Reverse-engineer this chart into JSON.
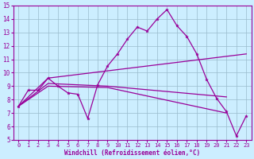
{
  "xlabel": "Windchill (Refroidissement éolien,°C)",
  "xlim": [
    -0.5,
    23.5
  ],
  "ylim": [
    5,
    15
  ],
  "yticks": [
    5,
    6,
    7,
    8,
    9,
    10,
    11,
    12,
    13,
    14,
    15
  ],
  "xticks": [
    0,
    1,
    2,
    3,
    4,
    5,
    6,
    7,
    8,
    9,
    10,
    11,
    12,
    13,
    14,
    15,
    16,
    17,
    18,
    19,
    20,
    21,
    22,
    23
  ],
  "color": "#990099",
  "bg_color": "#cceeff",
  "grid_color": "#99bbcc",
  "line1_x": [
    0,
    1,
    2,
    3,
    4,
    5,
    6,
    7,
    8,
    9,
    10,
    11,
    12,
    13,
    14,
    15,
    16,
    17,
    18,
    19,
    20,
    21,
    22,
    23
  ],
  "line1_y": [
    7.5,
    8.7,
    8.7,
    9.6,
    9.0,
    8.5,
    8.4,
    6.6,
    9.1,
    10.5,
    11.4,
    12.5,
    13.4,
    13.1,
    14.0,
    14.7,
    13.5,
    12.7,
    11.4,
    9.5,
    8.1,
    7.1,
    5.3,
    6.8
  ],
  "line2_x": [
    0,
    3,
    23
  ],
  "line2_y": [
    7.5,
    9.6,
    11.4
  ],
  "line3_x": [
    0,
    3,
    9,
    21
  ],
  "line3_y": [
    7.5,
    9.2,
    9.0,
    8.2
  ],
  "line4_x": [
    0,
    3,
    9,
    21
  ],
  "line4_y": [
    7.5,
    9.0,
    8.9,
    7.0
  ]
}
